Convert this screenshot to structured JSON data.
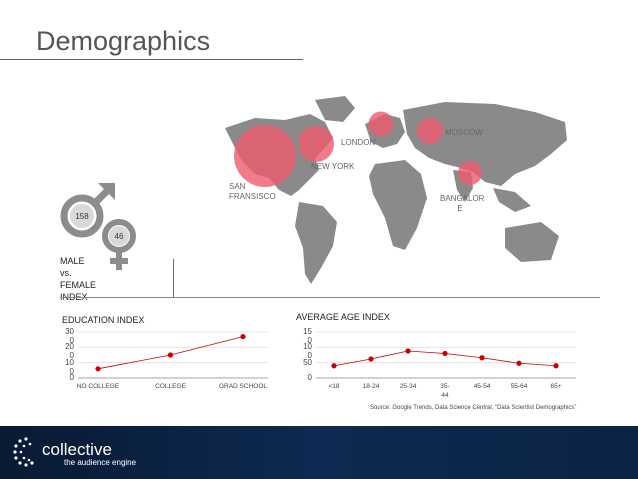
{
  "page": {
    "title": "Demographics"
  },
  "map": {
    "cities": [
      {
        "name": "San Fransisco",
        "label_lines": [
          "SAN",
          "FRANSISCO"
        ],
        "relative_size": 1.0
      },
      {
        "name": "New York",
        "label_lines": [
          "NEW YORK"
        ],
        "relative_size": 0.58
      },
      {
        "name": "London",
        "label_lines": [
          "LONDON"
        ],
        "relative_size": 0.4
      },
      {
        "name": "Moscow",
        "label_lines": [
          "MOSCOW"
        ],
        "relative_size": 0.42
      },
      {
        "name": "Bangalore",
        "label_lines": [
          "BANGALOR",
          "E"
        ],
        "relative_size": 0.38
      }
    ],
    "colors": {
      "land": "#8a8a8a",
      "bubble": "#ef5a6e"
    }
  },
  "gender": {
    "male_value": "158",
    "female_value": "46",
    "label_lines": [
      "MALE",
      "vs.",
      "FEMALE",
      "INDEX"
    ],
    "colors": {
      "male": "#8c8c8c",
      "female": "#8c8c8c",
      "badge": "#d9d9d9"
    }
  },
  "chart_data": [
    {
      "type": "line",
      "title": "EDUCATION INDEX",
      "categories": [
        "NO COLLEGE",
        "COLLEGE",
        "GRAD SCHOOL"
      ],
      "values": [
        60,
        150,
        270
      ],
      "ylim": [
        0,
        300
      ],
      "yticks": [
        {
          "lines": [
            "30",
            "0"
          ],
          "value": 300
        },
        {
          "lines": [
            "20",
            "0"
          ],
          "value": 200
        },
        {
          "lines": [
            "10",
            "0"
          ],
          "value": 100
        },
        {
          "lines": [
            "0"
          ],
          "value": 0
        }
      ],
      "color": "#cc0000",
      "grid": true
    },
    {
      "type": "line",
      "title": "AVERAGE AGE INDEX",
      "categories": [
        "<18",
        "18-24",
        "25-34",
        "35-44",
        "45-54",
        "55-64",
        "65+"
      ],
      "category_lines": [
        [
          "<18"
        ],
        [
          "18-24"
        ],
        [
          "25-34"
        ],
        [
          "35-",
          "44"
        ],
        [
          "45-54"
        ],
        [
          "55-64"
        ],
        [
          "65+"
        ]
      ],
      "values": [
        40,
        62,
        88,
        80,
        66,
        48,
        40
      ],
      "ylim": [
        0,
        150
      ],
      "yticks": [
        {
          "lines": [
            "15",
            "0"
          ],
          "value": 150
        },
        {
          "lines": [
            "10",
            "0"
          ],
          "value": 100
        },
        {
          "lines": [
            "50"
          ],
          "value": 50
        },
        {
          "lines": [
            "0"
          ],
          "value": 0
        }
      ],
      "color": "#cc0000",
      "grid": true
    }
  ],
  "source_text": "Source: Google Trends, Data Science Central, “Data Scientist Demographics”",
  "footer": {
    "logo_name": "collective",
    "tagline": "the audience engine"
  }
}
